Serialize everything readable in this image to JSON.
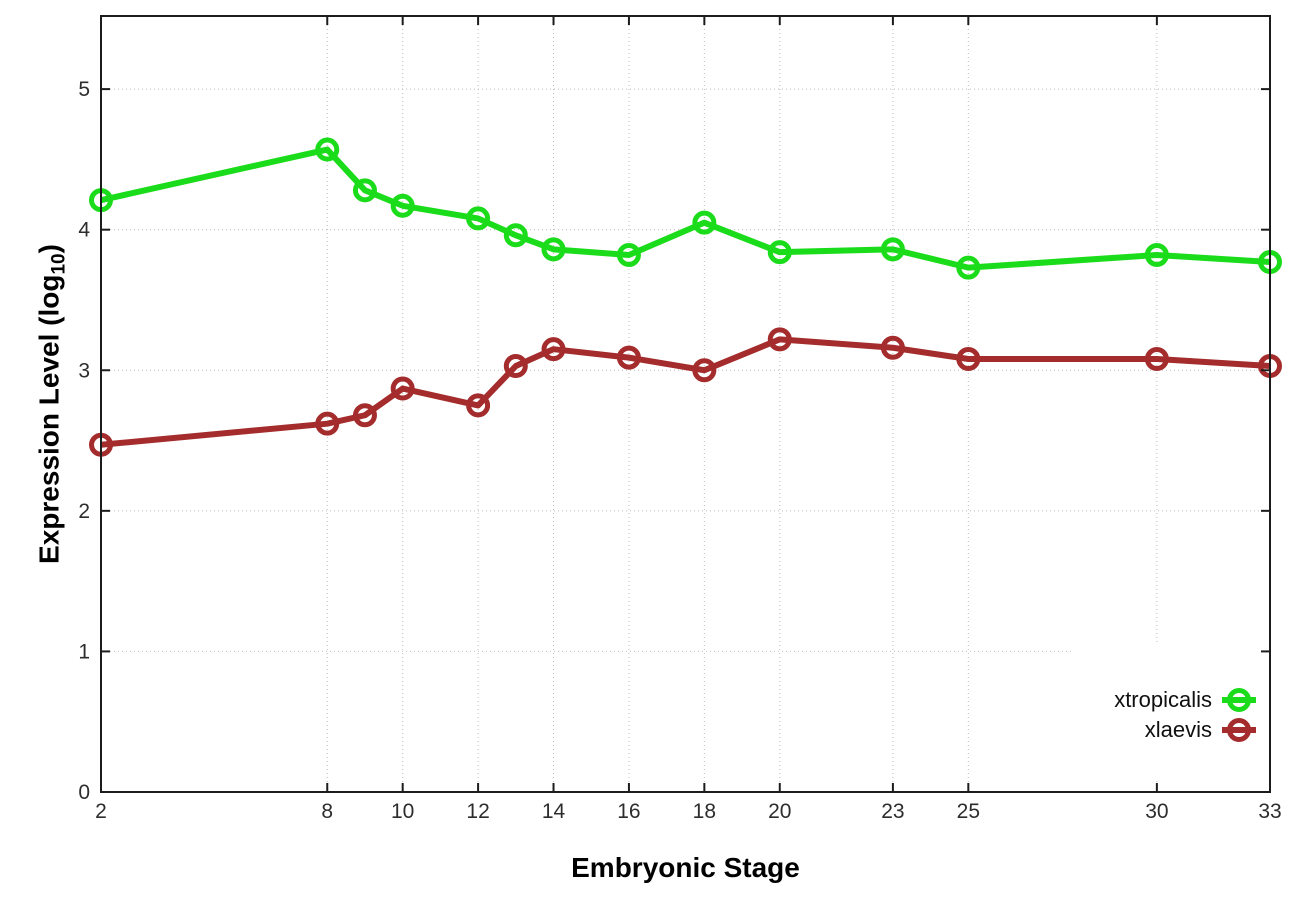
{
  "chart_data": {
    "type": "line",
    "title": "",
    "xlabel": "Embryonic Stage",
    "ylabel": {
      "prefix": "Expression Level (log",
      "sub": "10",
      "suffix": ")"
    },
    "x": [
      2,
      8,
      9,
      10,
      12,
      13,
      14,
      16,
      18,
      20,
      23,
      25,
      30,
      33
    ],
    "x_tick_labels": [
      "2",
      "8",
      "10",
      "12",
      "14",
      "16",
      "18",
      "20",
      "23",
      "25",
      "30",
      "33"
    ],
    "x_tick_values": [
      2,
      8,
      10,
      12,
      14,
      16,
      18,
      20,
      23,
      25,
      30,
      33
    ],
    "y_tick_labels": [
      "0",
      "1",
      "2",
      "3",
      "4",
      "5"
    ],
    "y_tick_values": [
      0,
      1,
      2,
      3,
      4,
      5
    ],
    "xlim": [
      2,
      33
    ],
    "ylim": [
      0,
      5.52
    ],
    "grid": true,
    "legend": {
      "position": "inside-bottom-right",
      "entries": [
        "xtropicalis",
        "xlaevis"
      ]
    },
    "series": [
      {
        "name": "xtropicalis",
        "color": "#1adc1a",
        "marker": "open-circle",
        "values": [
          4.21,
          4.57,
          4.28,
          4.17,
          4.08,
          3.96,
          3.86,
          3.82,
          4.05,
          3.84,
          3.86,
          3.73,
          3.82,
          3.77
        ]
      },
      {
        "name": "xlaevis",
        "color": "#a42c2c",
        "marker": "open-circle",
        "values": [
          2.47,
          2.62,
          2.68,
          2.87,
          2.75,
          3.03,
          3.15,
          3.09,
          3.0,
          3.22,
          3.16,
          3.08,
          3.08,
          3.03
        ]
      }
    ],
    "colors": {
      "axis": "#1c1c1c",
      "grid": "#bdbdbd",
      "tick_label": "#2d2d2d",
      "background": "#ffffff"
    }
  }
}
